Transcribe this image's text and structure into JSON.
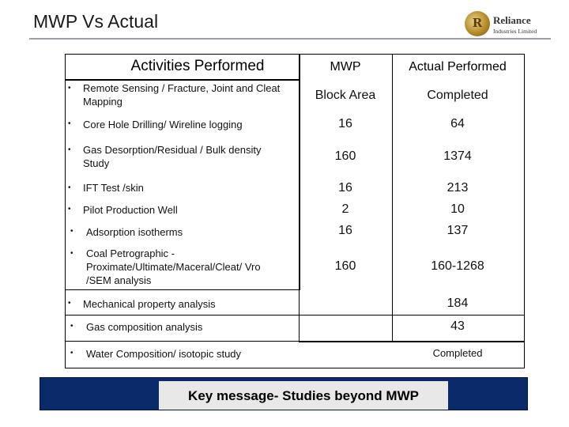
{
  "title": "MWP Vs Actual",
  "logo": {
    "name": "Reliance",
    "subtitle": "Industries Limited"
  },
  "headers": {
    "activities": "Activities Performed",
    "mwp": "MWP",
    "actual": "Actual Performed"
  },
  "rows": [
    {
      "activity": "Remote Sensing / Fracture, Joint and Cleat Mapping",
      "mwp": "Block Area",
      "actual": "Completed"
    },
    {
      "activity": "Core Hole Drilling/ Wireline logging",
      "mwp": "16",
      "actual": "64"
    },
    {
      "activity": "Gas Desorption/Residual / Bulk density Study",
      "mwp": "160",
      "actual": "1374"
    },
    {
      "activity": "IFT Test /skin",
      "mwp": "16",
      "actual": "213"
    },
    {
      "activity": "Pilot Production Well",
      "mwp": "2",
      "actual": "10"
    },
    {
      "activity": "Adsorption isotherms",
      "mwp": "16",
      "actual": "137"
    },
    {
      "activity": "Coal Petrographic - Proximate/Ultimate/Maceral/Cleat/ Vro /SEM analysis",
      "mwp": "160",
      "actual": "160-1268"
    },
    {
      "activity": "Mechanical property analysis",
      "mwp": "",
      "actual": "184"
    },
    {
      "activity": "Gas composition analysis",
      "mwp": "",
      "actual": "43"
    },
    {
      "activity": "Water Composition/ isotopic study",
      "mwp": "",
      "actual": "Completed"
    }
  ],
  "bullet": "•",
  "key_message": "Key message- Studies beyond MWP"
}
